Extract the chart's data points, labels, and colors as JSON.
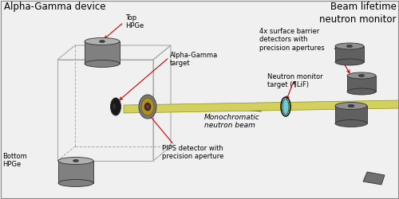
{
  "title_left": "Alpha-Gamma device",
  "title_right": "Beam lifetime\nneutron monitor",
  "bg_color": "#f0f0f0",
  "labels": {
    "top_hpge": "Top\nHPGe",
    "alpha_gamma_target": "Alpha-Gamma\ntarget",
    "bottom_hpge": "Bottom\nHPGe",
    "pips_detector": "PIPS detector with\nprecision aperture",
    "monochromatic": "Monochromatic\nneutron beam",
    "neutron_monitor_target": "Neutron monitor\ntarget (¶LiF)",
    "surface_barrier": "4x surface barrier\ndetectors with\nprecision apertures"
  },
  "beam_color": "#d4d060",
  "beam_edge": "#909010",
  "arrow_color": "#cc0000",
  "cyl_body": "#808080",
  "cyl_top": "#b0b0b0",
  "cyl_dark": "#404040",
  "cyl_edge": "#303030",
  "det_body": "#606060",
  "det_top": "#909090",
  "det_inner": "#404040",
  "target_cyan": "#70cccc",
  "target_black": "#181818",
  "pips_gold": "#b09020",
  "pips_gray": "#787878",
  "box_line": "#aaaaaa",
  "font_size_title": 8.5,
  "font_size_label": 6.0,
  "font_size_italic": 6.5
}
